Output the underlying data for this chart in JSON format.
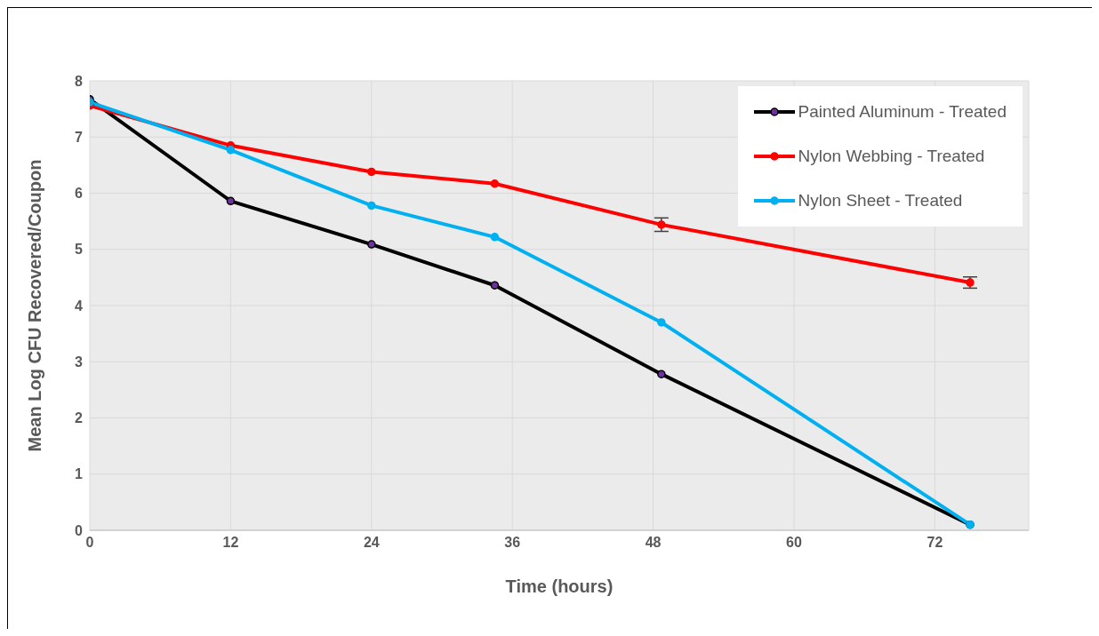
{
  "chart_data": {
    "type": "line",
    "xlabel": "Time (hours)",
    "ylabel": "Mean Log CFU Recovered/Coupon",
    "x": [
      0,
      12,
      24,
      34.5,
      48.7,
      75
    ],
    "series": [
      {
        "name": "Painted Aluminum - Treated",
        "color": "#000000",
        "values": [
          7.67,
          5.86,
          5.09,
          4.36,
          2.78,
          0.1
        ]
      },
      {
        "name": "Nylon Webbing - Treated",
        "color": "#ff0000",
        "values": [
          7.56,
          6.85,
          6.38,
          6.17,
          5.44,
          4.41
        ],
        "errors": [
          null,
          null,
          null,
          null,
          0.12,
          0.1
        ]
      },
      {
        "name": "Nylon Sheet - Treated",
        "color": "#00b0f0",
        "values": [
          7.62,
          6.77,
          5.78,
          5.22,
          3.7,
          0.1
        ]
      }
    ],
    "xlim": [
      0,
      80
    ],
    "xticks": [
      0,
      12,
      24,
      36,
      48,
      60,
      72
    ],
    "ylim": [
      0,
      8
    ],
    "yticks": [
      0,
      1,
      2,
      3,
      4,
      5,
      6,
      7,
      8
    ],
    "grid": true,
    "legend": "top right",
    "marker": "circle",
    "line_style": "solid"
  }
}
